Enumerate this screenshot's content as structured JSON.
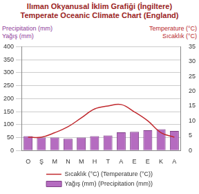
{
  "chart_data": {
    "type": "bar",
    "title": "Ilıman Okyanusal İklim Grafiği (İngiltere)",
    "subtitle": "Temperate Oceanic Climate Chart (England)",
    "ylabel": [
      "Precipitation (mm)",
      "Yağış (mm)"
    ],
    "y2label": [
      "Temperature (°C)",
      "Sıcaklık (°C)"
    ],
    "categories": [
      "O",
      "Ş",
      "M",
      "N",
      "M",
      "H",
      "T",
      "A",
      "E",
      "E",
      "K",
      "A"
    ],
    "series": [
      {
        "name": "Sıcaklık (°C) (Temperature (°C))",
        "type": "line",
        "axis": "y2",
        "color": "#c0282d",
        "values": [
          4.5,
          4.5,
          6,
          8,
          11,
          14,
          15,
          15.5,
          13,
          10,
          6,
          4.5
        ]
      },
      {
        "name": "Yağış (mm) (Precipitation (mm))",
        "type": "bar",
        "color": "#b56cc0",
        "values": [
          55,
          50,
          50,
          45,
          50,
          55,
          58,
          70,
          72,
          78,
          82,
          75
        ]
      }
    ],
    "ylim": [
      0,
      400
    ],
    "yticks": [
      0,
      50,
      100,
      150,
      200,
      250,
      300,
      350,
      400
    ],
    "y2lim": [
      0,
      35
    ],
    "y2ticks": [
      0,
      5,
      10,
      15,
      20,
      25,
      30,
      35
    ],
    "grid": true,
    "legend": "bottom"
  }
}
